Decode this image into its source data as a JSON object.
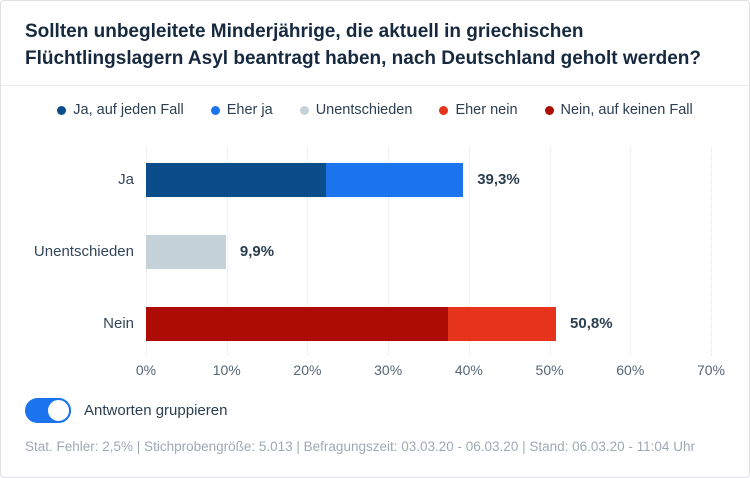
{
  "title": "Sollten unbegleitete Minderjährige, die aktuell in griechischen Flüchtlingslagern Asyl beantragt haben, nach Deutschland geholt werden?",
  "colors": {
    "ja_auf_jeden_fall": "#0b4d8a",
    "eher_ja": "#1b73ee",
    "unentschieden": "#c6d2da",
    "eher_nein": "#e5341b",
    "nein_auf_keinen_fall": "#ad0c04",
    "toggle_on": "#1b73ee"
  },
  "legend": [
    {
      "label": "Ja, auf jeden Fall",
      "color": "#0b4d8a"
    },
    {
      "label": "Eher ja",
      "color": "#1b73ee"
    },
    {
      "label": "Unentschieden",
      "color": "#c6d2da"
    },
    {
      "label": "Eher nein",
      "color": "#e5341b"
    },
    {
      "label": "Nein, auf keinen Fall",
      "color": "#ad0c04"
    }
  ],
  "chart_data": {
    "type": "bar",
    "orientation": "horizontal",
    "stacked": true,
    "grouped": true,
    "title": "Sollten unbegleitete Minderjährige, die aktuell in griechischen Flüchtlingslagern Asyl beantragt haben, nach Deutschland geholt werden?",
    "categories": [
      "Ja",
      "Unentschieden",
      "Nein"
    ],
    "rows": [
      {
        "category": "Ja",
        "total": 39.3,
        "total_label": "39,3%",
        "segments": [
          {
            "name": "Ja, auf jeden Fall",
            "value": 22.3,
            "color": "#0b4d8a"
          },
          {
            "name": "Eher ja",
            "value": 17.0,
            "color": "#1b73ee"
          }
        ]
      },
      {
        "category": "Unentschieden",
        "total": 9.9,
        "total_label": "9,9%",
        "segments": [
          {
            "name": "Unentschieden",
            "value": 9.9,
            "color": "#c6d2da"
          }
        ]
      },
      {
        "category": "Nein",
        "total": 50.8,
        "total_label": "50,8%",
        "segments": [
          {
            "name": "Nein, auf keinen Fall",
            "value": 37.4,
            "color": "#ad0c04"
          },
          {
            "name": "Eher nein",
            "value": 13.4,
            "color": "#e5341b"
          }
        ]
      }
    ],
    "x_ticks": [
      "0%",
      "10%",
      "20%",
      "30%",
      "40%",
      "50%",
      "60%",
      "70%"
    ],
    "xlim": [
      0,
      70
    ],
    "grid": "vertical-dotted",
    "legend_position": "top"
  },
  "toggle": {
    "label": "Antworten gruppieren",
    "state": "on"
  },
  "footer": {
    "text": "Stat. Fehler: 2,5% | Stichprobengröße: 5.013 | Befragungszeit: 03.03.20 - 06.03.20 | Stand: 06.03.20 - 11:04 Uhr"
  }
}
